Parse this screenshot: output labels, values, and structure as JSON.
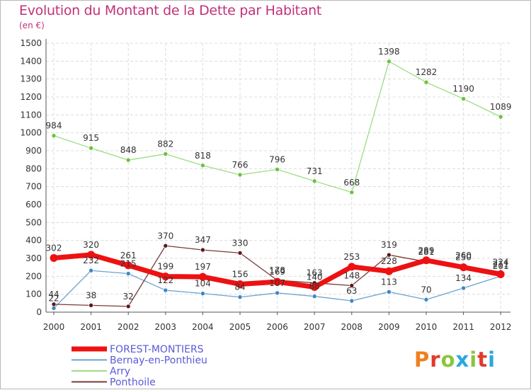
{
  "header": {
    "title": "Evolution du Montant de la Dette par Habitant",
    "unit": "(en €)"
  },
  "logo": {
    "text": "Proxiti",
    "colors": [
      "#f07f1b",
      "#e23a2b",
      "#8bc53f",
      "#29a8df",
      "#8bc53f",
      "#e23a2b",
      "#29a8df"
    ]
  },
  "chart_data": {
    "type": "line",
    "title": "Evolution du Montant de la Dette par Habitant",
    "subtitle": "(en €)",
    "x": [
      "2000",
      "2001",
      "2002",
      "2003",
      "2004",
      "2005",
      "2006",
      "2007",
      "2008",
      "2009",
      "2010",
      "2011",
      "2012"
    ],
    "ylim": [
      0,
      1500
    ],
    "yticks": [
      0,
      100,
      200,
      300,
      400,
      500,
      600,
      700,
      800,
      900,
      1000,
      1100,
      1200,
      1300,
      1400,
      1500
    ],
    "grid": true,
    "legend_position": "bottom-left",
    "series": [
      {
        "name": "FOREST-MONTIERS",
        "color": "#ee1111",
        "marker": "#ee1111",
        "width": 7,
        "values": [
          302,
          320,
          261,
          199,
          197,
          156,
          169,
          140,
          253,
          228,
          289,
          250,
          211
        ]
      },
      {
        "name": "Bernay-en-Ponthieu",
        "color": "#6aa2cf",
        "marker": "#3f86c4",
        "width": 1.3,
        "values": [
          22,
          232,
          215,
          122,
          104,
          84,
          107,
          88,
          63,
          113,
          70,
          134,
          201
        ]
      },
      {
        "name": "Arry",
        "color": "#9edc84",
        "marker": "#6cc23e",
        "width": 1.3,
        "values": [
          984,
          915,
          848,
          882,
          818,
          766,
          796,
          731,
          668,
          1398,
          1282,
          1190,
          1089
        ]
      },
      {
        "name": "Ponthoile",
        "color": "#7a3a3a",
        "marker": "#5e1616",
        "width": 1.3,
        "values": [
          44,
          38,
          32,
          370,
          347,
          330,
          178,
          163,
          148,
          319,
          281,
          260,
          224
        ]
      }
    ]
  }
}
